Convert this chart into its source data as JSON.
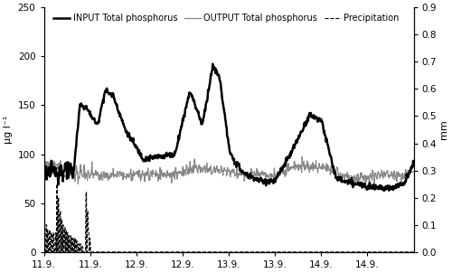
{
  "ylabel_left": "μg l⁻¹",
  "ylabel_right": "mm",
  "ylim_left": [
    0,
    250
  ],
  "ylim_right": [
    0,
    0.9
  ],
  "yticks_left": [
    0,
    50,
    100,
    150,
    200,
    250
  ],
  "yticks_right": [
    0.0,
    0.1,
    0.2,
    0.3,
    0.4,
    0.5,
    0.6,
    0.7,
    0.8,
    0.9
  ],
  "legend_labels": [
    "INPUT Total phosphorus",
    "OUTPUT Total phosphorus",
    "Precipitation"
  ],
  "input_color": "#000000",
  "output_color": "#888888",
  "precip_color": "#000000",
  "background_color": "#ffffff",
  "x_tick_labels": [
    "11.9.",
    "11.9.",
    "12.9.",
    "12.9.",
    "13.9.",
    "13.9.",
    "14.9.",
    "14.9."
  ],
  "x_tick_positions": [
    0,
    12,
    24,
    36,
    48,
    60,
    72,
    84
  ],
  "xlim": [
    0,
    96
  ],
  "n_points": 800
}
